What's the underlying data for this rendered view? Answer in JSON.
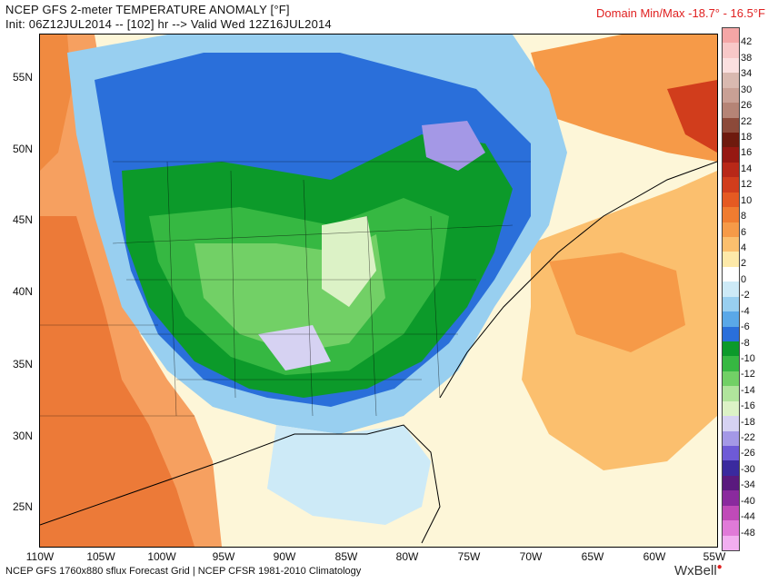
{
  "header": {
    "title_line1": "NCEP GFS 2-meter TEMPERATURE ANOMALY [°F]",
    "title_line2": "Init: 06Z12JUL2014 -- [102] hr --> Valid Wed 12Z16JUL2014",
    "domain_minmax": "Domain Min/Max -18.7° -  16.5°F"
  },
  "map": {
    "lat_labels": [
      "55N",
      "50N",
      "45N",
      "40N",
      "35N",
      "30N",
      "25N"
    ],
    "lon_labels": [
      "110W",
      "105W",
      "100W",
      "95W",
      "90W",
      "85W",
      "80W",
      "75W",
      "70W",
      "65W",
      "60W",
      "55W"
    ]
  },
  "colorbar": {
    "labels": [
      "42",
      "38",
      "34",
      "30",
      "26",
      "22",
      "18",
      "16",
      "14",
      "12",
      "10",
      "8",
      "6",
      "4",
      "2",
      "0",
      "-2",
      "-4",
      "-6",
      "-8",
      "-10",
      "-12",
      "-14",
      "-16",
      "-18",
      "-22",
      "-26",
      "-30",
      "-34",
      "-40",
      "-44",
      "-48"
    ],
    "colors": [
      "#f4a6a6",
      "#f8c8c8",
      "#fbe0e0",
      "#d9b9b0",
      "#c9a095",
      "#b58476",
      "#8c4a3a",
      "#6e1a0e",
      "#961812",
      "#b82818",
      "#d13d1c",
      "#e55a22",
      "#f07c30",
      "#f69a48",
      "#fbbf6e",
      "#fde9a9",
      "#ffffff",
      "#cdeaf7",
      "#98cff0",
      "#5aa8e8",
      "#2a6fda",
      "#0c9a2a",
      "#36b842",
      "#72d066",
      "#b0e49c",
      "#dcf2c6",
      "#d6d2f2",
      "#a498e6",
      "#6e5ad6",
      "#3a2a9e",
      "#5a1a7e",
      "#8a2a9e",
      "#c04ab8",
      "#e07ad8",
      "#f2aef0"
    ]
  },
  "footer": {
    "text": "NCEP GFS 1760x880 sflux Forecast Grid | NCEP CFSR 1981-2010 Climatology",
    "brand": "WxBell"
  }
}
